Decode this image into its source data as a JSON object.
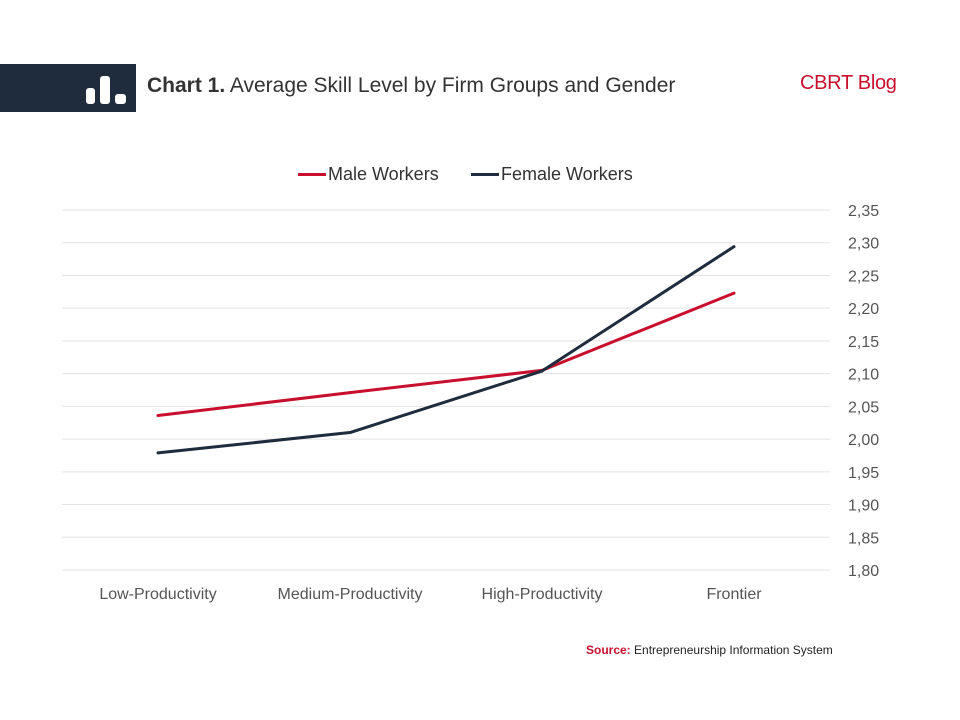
{
  "header": {
    "title_lead": "Chart 1.",
    "title_rest": "Average Skill Level by Firm Groups and Gender",
    "brand": "CBRT Blog"
  },
  "colors": {
    "header_band": "#1e2c3d",
    "male": "#c8102e",
    "female": "#1e2c3d",
    "grid": "#e3e3e3",
    "source_label": "#c8102e"
  },
  "icons": [
    "bar-chart-icon"
  ],
  "source": {
    "label": "Source:",
    "text": "Entrepreneurship Information System"
  },
  "chart_data": {
    "type": "line",
    "title": "",
    "xlabel": "",
    "ylabel": "",
    "categories": [
      "Low-Productivity",
      "Medium-Productivity",
      "High-Productivity",
      "Frontier"
    ],
    "series": [
      {
        "name": "Male Workers",
        "values": [
          2.036,
          2.071,
          2.105,
          2.223
        ]
      },
      {
        "name": "Female Workers",
        "values": [
          1.979,
          2.01,
          2.104,
          2.294
        ]
      }
    ],
    "ylim": [
      1.8,
      2.35
    ],
    "yticks": [
      "1,80",
      "1,85",
      "1,90",
      "1,95",
      "2,00",
      "2,05",
      "2,10",
      "2,15",
      "2,20",
      "2,25",
      "2,30",
      "2,35"
    ],
    "y_axis_side": "right",
    "grid": true,
    "legend_position": "top"
  }
}
